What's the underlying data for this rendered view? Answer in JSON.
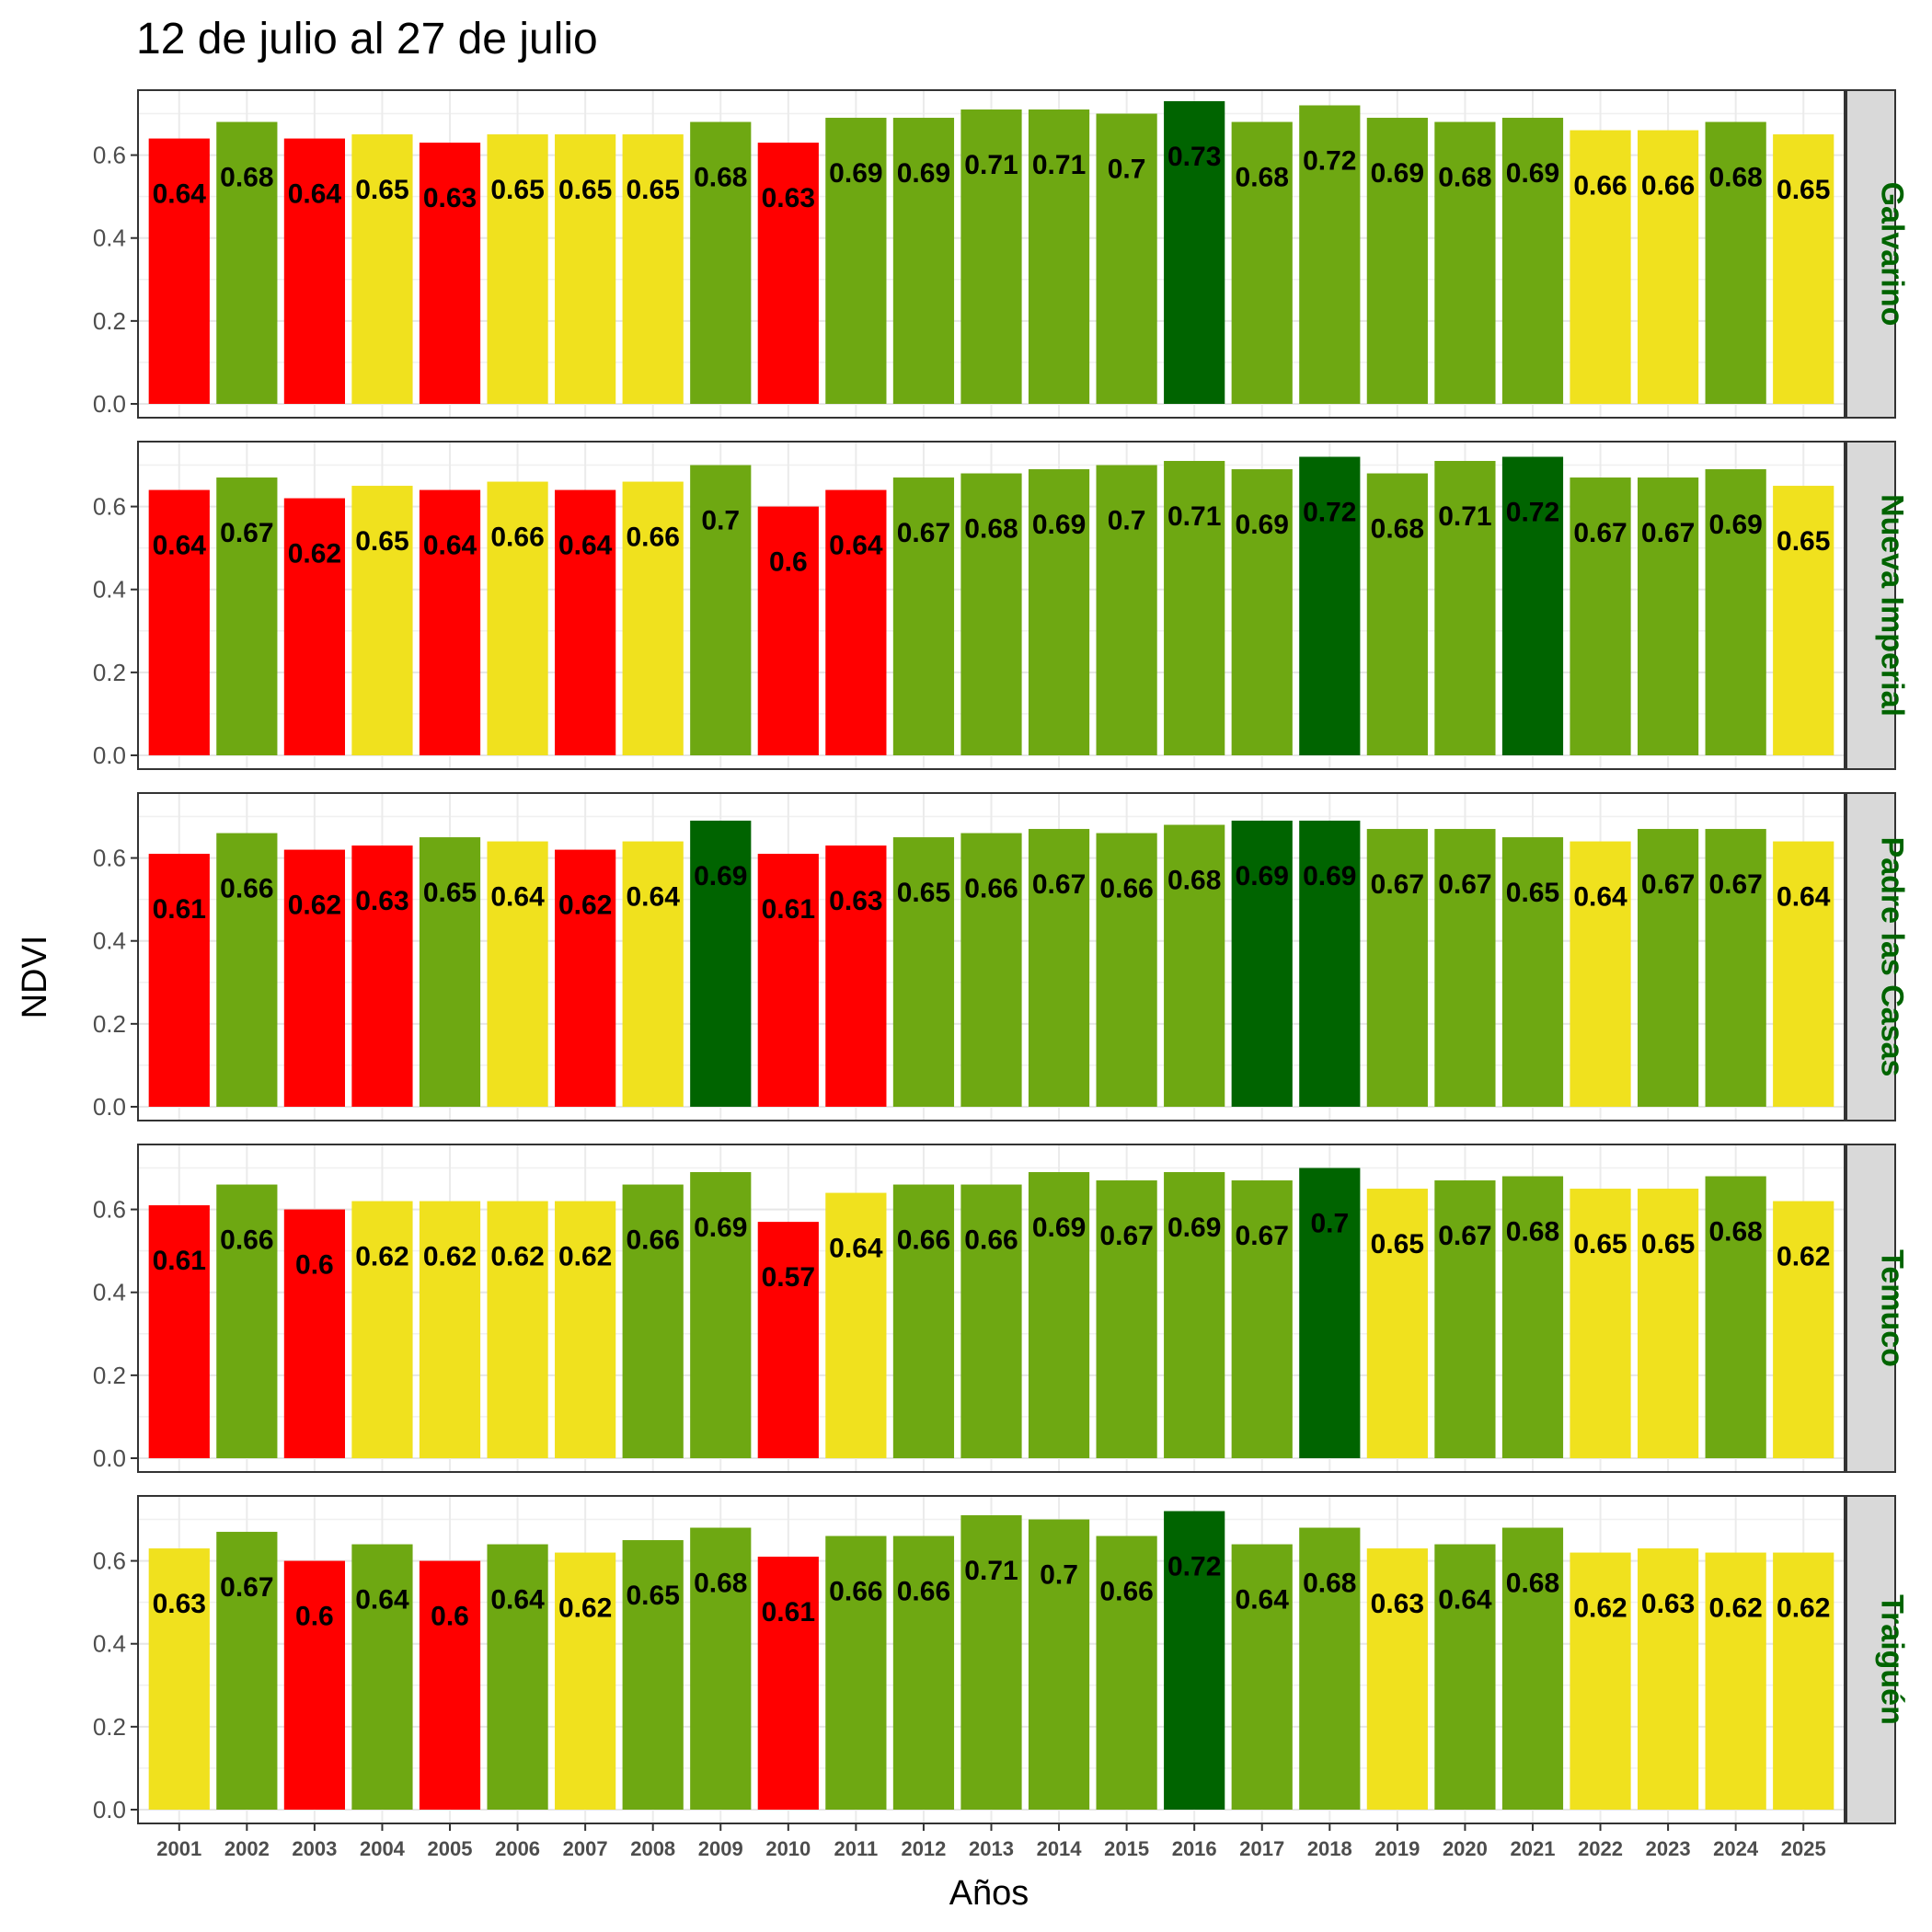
{
  "chart_data": {
    "type": "bar",
    "title": "12 de julio al 27 de julio",
    "xlabel": "Años",
    "ylabel": "NDVI",
    "ylim": [
      0,
      0.73
    ],
    "yticks": [
      0.0,
      0.2,
      0.4,
      0.6
    ],
    "ytick_labels": [
      "0.0",
      "0.2",
      "0.4",
      "0.6"
    ],
    "grid": true,
    "categories": [
      "2001",
      "2002",
      "2003",
      "2004",
      "2005",
      "2006",
      "2007",
      "2008",
      "2009",
      "2010",
      "2011",
      "2012",
      "2013",
      "2014",
      "2015",
      "2016",
      "2017",
      "2018",
      "2019",
      "2020",
      "2021",
      "2022",
      "2023",
      "2024",
      "2025"
    ],
    "colors": {
      "red": "#ff0000",
      "yellow": "#f0e11e",
      "green": "#6ea812",
      "darkgreen": "#006400"
    },
    "panels": [
      {
        "name": "Galvarino",
        "values": [
          0.64,
          0.68,
          0.64,
          0.65,
          0.63,
          0.65,
          0.65,
          0.65,
          0.68,
          0.63,
          0.69,
          0.69,
          0.71,
          0.71,
          0.7,
          0.73,
          0.68,
          0.72,
          0.69,
          0.68,
          0.69,
          0.66,
          0.66,
          0.68,
          0.65
        ],
        "labels": [
          "0.64",
          "0.68",
          "0.64",
          "0.65",
          "0.63",
          "0.65",
          "0.65",
          "0.65",
          "0.68",
          "0.63",
          "0.69",
          "0.69",
          "0.71",
          "0.71",
          "0.7",
          "0.73",
          "0.68",
          "0.72",
          "0.69",
          "0.68",
          "0.69",
          "0.66",
          "0.66",
          "0.68",
          "0.65"
        ],
        "classes": [
          "red",
          "green",
          "red",
          "yellow",
          "red",
          "yellow",
          "yellow",
          "yellow",
          "green",
          "red",
          "green",
          "green",
          "green",
          "green",
          "green",
          "darkgreen",
          "green",
          "green",
          "green",
          "green",
          "green",
          "yellow",
          "yellow",
          "green",
          "yellow"
        ]
      },
      {
        "name": "Nueva Imperial",
        "values": [
          0.64,
          0.67,
          0.62,
          0.65,
          0.64,
          0.66,
          0.64,
          0.66,
          0.7,
          0.6,
          0.64,
          0.67,
          0.68,
          0.69,
          0.7,
          0.71,
          0.69,
          0.72,
          0.68,
          0.71,
          0.72,
          0.67,
          0.67,
          0.69,
          0.65
        ],
        "labels": [
          "0.64",
          "0.67",
          "0.62",
          "0.65",
          "0.64",
          "0.66",
          "0.64",
          "0.66",
          "0.7",
          "0.6",
          "0.64",
          "0.67",
          "0.68",
          "0.69",
          "0.7",
          "0.71",
          "0.69",
          "0.72",
          "0.68",
          "0.71",
          "0.72",
          "0.67",
          "0.67",
          "0.69",
          "0.65"
        ],
        "classes": [
          "red",
          "green",
          "red",
          "yellow",
          "red",
          "yellow",
          "red",
          "yellow",
          "green",
          "red",
          "red",
          "green",
          "green",
          "green",
          "green",
          "green",
          "green",
          "darkgreen",
          "green",
          "green",
          "darkgreen",
          "green",
          "green",
          "green",
          "yellow"
        ]
      },
      {
        "name": "Padre las Casas",
        "values": [
          0.61,
          0.66,
          0.62,
          0.63,
          0.65,
          0.64,
          0.62,
          0.64,
          0.69,
          0.61,
          0.63,
          0.65,
          0.66,
          0.67,
          0.66,
          0.68,
          0.69,
          0.69,
          0.67,
          0.67,
          0.65,
          0.64,
          0.67,
          0.67,
          0.64
        ],
        "labels": [
          "0.61",
          "0.66",
          "0.62",
          "0.63",
          "0.65",
          "0.64",
          "0.62",
          "0.64",
          "0.69",
          "0.61",
          "0.63",
          "0.65",
          "0.66",
          "0.67",
          "0.66",
          "0.68",
          "0.69",
          "0.69",
          "0.67",
          "0.67",
          "0.65",
          "0.64",
          "0.67",
          "0.67",
          "0.64"
        ],
        "classes": [
          "red",
          "green",
          "red",
          "red",
          "green",
          "yellow",
          "red",
          "yellow",
          "darkgreen",
          "red",
          "red",
          "green",
          "green",
          "green",
          "green",
          "green",
          "darkgreen",
          "darkgreen",
          "green",
          "green",
          "green",
          "yellow",
          "green",
          "green",
          "yellow"
        ]
      },
      {
        "name": "Temuco",
        "values": [
          0.61,
          0.66,
          0.6,
          0.62,
          0.62,
          0.62,
          0.62,
          0.66,
          0.69,
          0.57,
          0.64,
          0.66,
          0.66,
          0.69,
          0.67,
          0.69,
          0.67,
          0.7,
          0.65,
          0.67,
          0.68,
          0.65,
          0.65,
          0.68,
          0.62
        ],
        "labels": [
          "0.61",
          "0.66",
          "0.6",
          "0.62",
          "0.62",
          "0.62",
          "0.62",
          "0.66",
          "0.69",
          "0.57",
          "0.64",
          "0.66",
          "0.66",
          "0.69",
          "0.67",
          "0.69",
          "0.67",
          "0.7",
          "0.65",
          "0.67",
          "0.68",
          "0.65",
          "0.65",
          "0.68",
          "0.62"
        ],
        "classes": [
          "red",
          "green",
          "red",
          "yellow",
          "yellow",
          "yellow",
          "yellow",
          "green",
          "green",
          "red",
          "yellow",
          "green",
          "green",
          "green",
          "green",
          "green",
          "green",
          "darkgreen",
          "yellow",
          "green",
          "green",
          "yellow",
          "yellow",
          "green",
          "yellow"
        ]
      },
      {
        "name": "Traiguén",
        "values": [
          0.63,
          0.67,
          0.6,
          0.64,
          0.6,
          0.64,
          0.62,
          0.65,
          0.68,
          0.61,
          0.66,
          0.66,
          0.71,
          0.7,
          0.66,
          0.72,
          0.64,
          0.68,
          0.63,
          0.64,
          0.68,
          0.62,
          0.63,
          0.62,
          0.62
        ],
        "labels": [
          "0.63",
          "0.67",
          "0.6",
          "0.64",
          "0.6",
          "0.64",
          "0.62",
          "0.65",
          "0.68",
          "0.61",
          "0.66",
          "0.66",
          "0.71",
          "0.7",
          "0.66",
          "0.72",
          "0.64",
          "0.68",
          "0.63",
          "0.64",
          "0.68",
          "0.62",
          "0.63",
          "0.62",
          "0.62"
        ],
        "classes": [
          "yellow",
          "green",
          "red",
          "green",
          "red",
          "green",
          "yellow",
          "green",
          "green",
          "red",
          "green",
          "green",
          "green",
          "green",
          "green",
          "darkgreen",
          "green",
          "green",
          "yellow",
          "green",
          "green",
          "yellow",
          "yellow",
          "yellow",
          "yellow"
        ]
      }
    ]
  }
}
